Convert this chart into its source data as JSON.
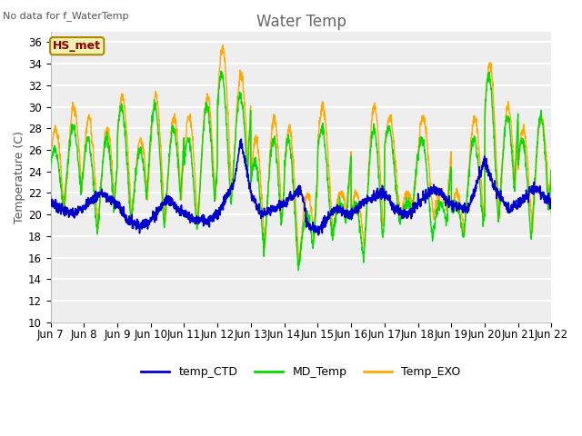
{
  "title": "Water Temp",
  "ylabel": "Temperature (C)",
  "top_left_text": "No data for f_WaterTemp",
  "annotation_box": "HS_met",
  "ylim": [
    10,
    37
  ],
  "yticks": [
    10,
    12,
    14,
    16,
    18,
    20,
    22,
    24,
    26,
    28,
    30,
    32,
    34,
    36
  ],
  "xtick_labels": [
    "Jun 7",
    "Jun 8",
    "Jun 9",
    "Jun 10",
    "Jun 11",
    "Jun 12",
    "Jun 13",
    "Jun 14",
    "Jun 15",
    "Jun 16",
    "Jun 17",
    "Jun 18",
    "Jun 19",
    "Jun 20",
    "Jun 21",
    "Jun 22"
  ],
  "colors": {
    "temp_CTD": "#0000cc",
    "MD_Temp": "#00dd00",
    "Temp_EXO": "#ffaa00",
    "plot_bg": "#eeeeee"
  },
  "grid_color": "#ffffff",
  "title_fontsize": 12,
  "axis_label_fontsize": 9,
  "tick_fontsize": 8.5
}
